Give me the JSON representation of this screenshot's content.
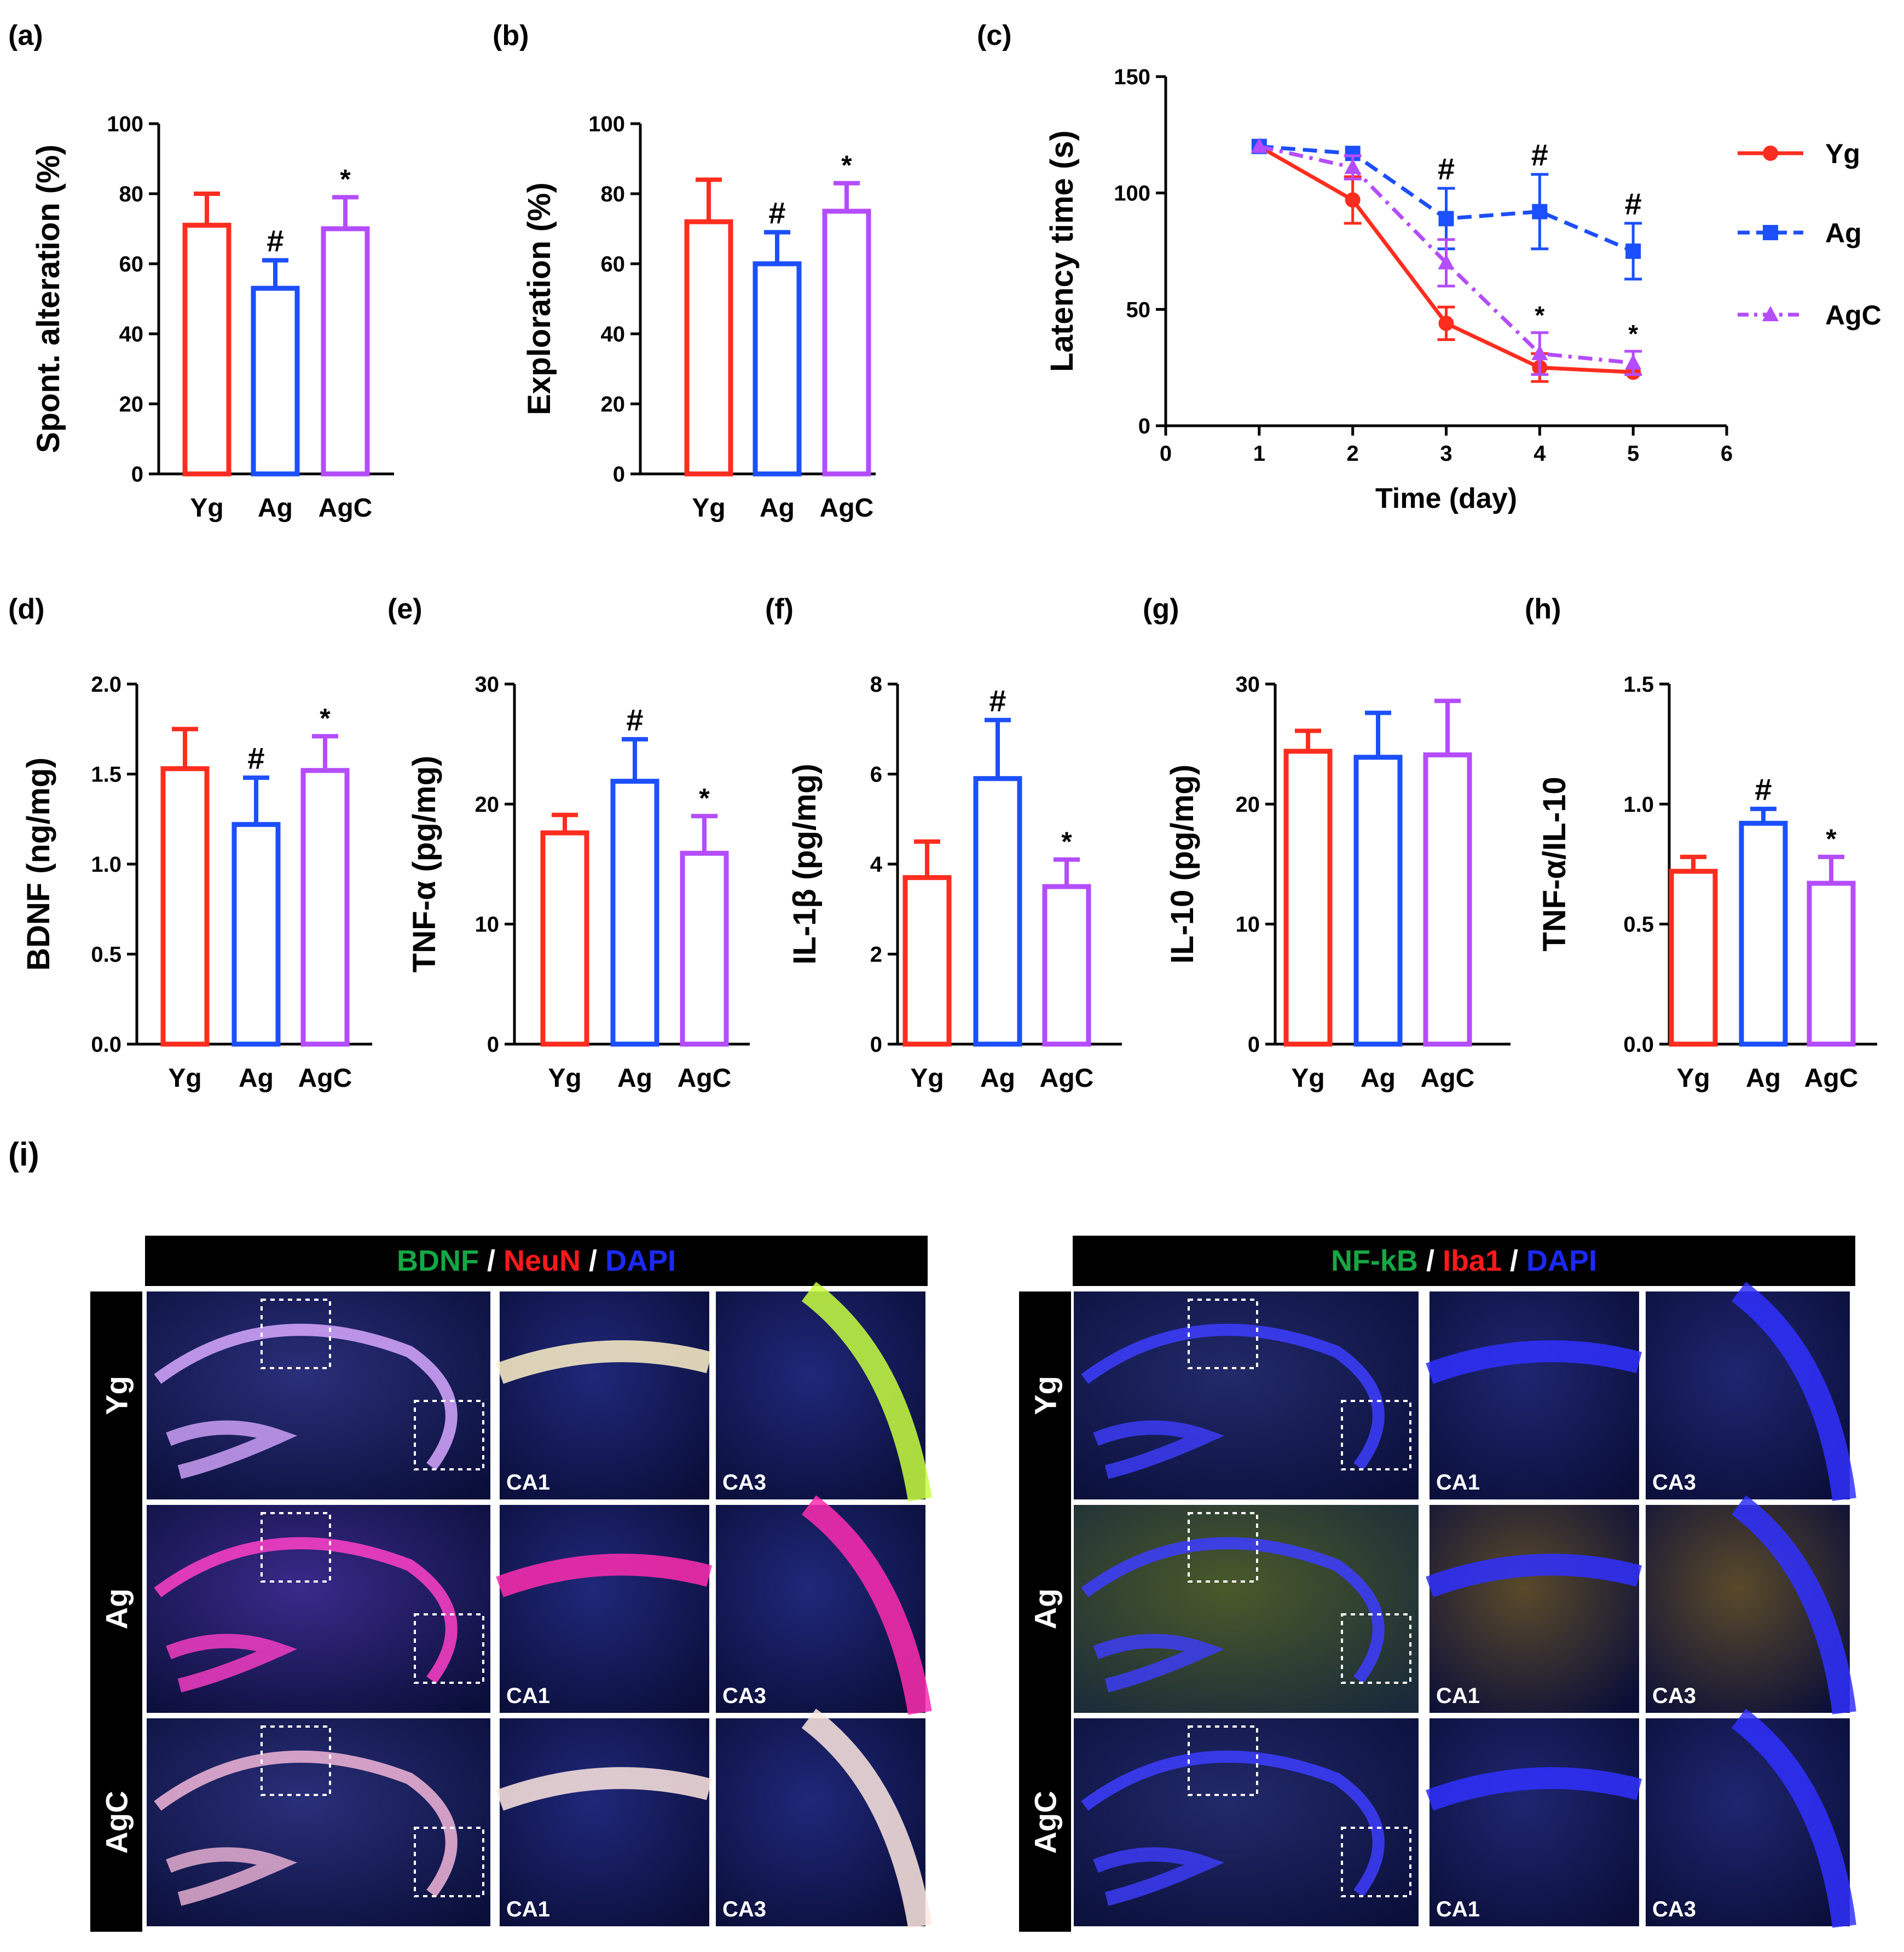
{
  "colors": {
    "yg": "#ff2d1f",
    "ag": "#1c4fff",
    "agc": "#b44cff",
    "axis": "#000000",
    "stain_green": "#14a844",
    "stain_red": "#ff1a1a",
    "stain_blue": "#1a2aff",
    "header_bg": "#000000",
    "header_sep": "#ffffff"
  },
  "chart_data": [
    {
      "id": "a",
      "panel_label": "(a)",
      "type": "bar",
      "ylabel": "Spont. alteration (%)",
      "ylim": [
        0,
        100
      ],
      "yticks": [
        "0",
        "20",
        "40",
        "60",
        "80",
        "100"
      ],
      "categories": [
        "Yg",
        "Ag",
        "AgC"
      ],
      "values": [
        71,
        53,
        70
      ],
      "errors": [
        9,
        8,
        9
      ],
      "annotations": [
        "",
        "#",
        "*"
      ]
    },
    {
      "id": "b",
      "panel_label": "(b)",
      "type": "bar",
      "ylabel": "Exploration (%)",
      "ylim": [
        0,
        100
      ],
      "yticks": [
        "0",
        "20",
        "40",
        "60",
        "80",
        "100"
      ],
      "categories": [
        "Yg",
        "Ag",
        "AgC"
      ],
      "values": [
        72,
        60,
        75
      ],
      "errors": [
        12,
        9,
        8
      ],
      "annotations": [
        "",
        "#",
        "*"
      ]
    },
    {
      "id": "c",
      "panel_label": "(c)",
      "type": "line",
      "ylabel": "Latency time (s)",
      "xlabel": "Time (day)",
      "xlim": [
        0,
        6
      ],
      "xticks": [
        "0",
        "1",
        "2",
        "3",
        "4",
        "5",
        "6"
      ],
      "ylim": [
        0,
        150
      ],
      "yticks": [
        "0",
        "50",
        "100",
        "150"
      ],
      "x": [
        1,
        2,
        3,
        4,
        5
      ],
      "series": [
        {
          "name": "Yg",
          "values": [
            120,
            97,
            44,
            25,
            23
          ],
          "errors": [
            2,
            10,
            7,
            6,
            2
          ],
          "annotations": [
            "",
            "",
            "",
            "",
            ""
          ]
        },
        {
          "name": "Ag",
          "values": [
            120,
            117,
            89,
            92,
            75
          ],
          "errors": [
            2,
            2,
            13,
            16,
            12
          ],
          "annotations": [
            "",
            "",
            "#",
            "#",
            "#"
          ]
        },
        {
          "name": "AgC",
          "values": [
            120,
            111,
            70,
            31,
            27
          ],
          "errors": [
            2,
            5,
            10,
            9,
            5
          ],
          "annotations": [
            "",
            "",
            "",
            "*",
            "*"
          ]
        }
      ],
      "legend": [
        "Yg",
        "Ag",
        "AgC"
      ]
    },
    {
      "id": "d",
      "panel_label": "(d)",
      "type": "bar",
      "ylabel": "BDNF (ng/mg)",
      "ylim": [
        0,
        2.0
      ],
      "yticks": [
        "0.0",
        "0.5",
        "1.0",
        "1.5",
        "2.0"
      ],
      "categories": [
        "Yg",
        "Ag",
        "AgC"
      ],
      "values": [
        1.53,
        1.22,
        1.52
      ],
      "errors": [
        0.22,
        0.26,
        0.19
      ],
      "annotations": [
        "",
        "#",
        "*"
      ]
    },
    {
      "id": "e",
      "panel_label": "(e)",
      "type": "bar",
      "ylabel": "TNF-α (pg/mg)",
      "ylim": [
        0,
        30
      ],
      "yticks": [
        "0",
        "10",
        "20",
        "30"
      ],
      "categories": [
        "Yg",
        "Ag",
        "AgC"
      ],
      "values": [
        17.6,
        21.9,
        15.9
      ],
      "errors": [
        1.5,
        3.5,
        3.1
      ],
      "annotations": [
        "",
        "#",
        "*"
      ]
    },
    {
      "id": "f",
      "panel_label": "(f)",
      "type": "bar",
      "ylabel": "IL-1β (pg/mg)",
      "ylim": [
        0,
        8
      ],
      "yticks": [
        "0",
        "2",
        "4",
        "6",
        "8"
      ],
      "categories": [
        "Yg",
        "Ag",
        "AgC"
      ],
      "values": [
        3.7,
        5.9,
        3.5
      ],
      "errors": [
        0.8,
        1.3,
        0.6
      ],
      "annotations": [
        "",
        "#",
        "*"
      ]
    },
    {
      "id": "g",
      "panel_label": "(g)",
      "type": "bar",
      "ylabel": "IL-10 (pg/mg)",
      "ylim": [
        0,
        30
      ],
      "yticks": [
        "0",
        "10",
        "20",
        "30"
      ],
      "categories": [
        "Yg",
        "Ag",
        "AgC"
      ],
      "values": [
        24.4,
        23.9,
        24.1
      ],
      "errors": [
        1.7,
        3.7,
        4.5
      ],
      "annotations": [
        "",
        "",
        ""
      ]
    },
    {
      "id": "h",
      "panel_label": "(h)",
      "type": "bar",
      "ylabel": "TNF-α/IL-10",
      "ylim": [
        0,
        1.5
      ],
      "yticks": [
        "0.0",
        "0.5",
        "1.0",
        "1.5"
      ],
      "categories": [
        "Yg",
        "Ag",
        "AgC"
      ],
      "values": [
        0.72,
        0.92,
        0.67
      ],
      "errors": [
        0.06,
        0.06,
        0.11
      ],
      "annotations": [
        "",
        "#",
        "*"
      ]
    }
  ],
  "micrographs": {
    "panel_label": "(i)",
    "left_header": [
      {
        "text": "BDNF",
        "color": "green"
      },
      {
        "text": " / ",
        "color": "white"
      },
      {
        "text": "NeuN",
        "color": "red"
      },
      {
        "text": " / ",
        "color": "white"
      },
      {
        "text": "DAPI",
        "color": "blue"
      }
    ],
    "right_header": [
      {
        "text": "NF-kB",
        "color": "green"
      },
      {
        "text": " / ",
        "color": "white"
      },
      {
        "text": "Iba1",
        "color": "red"
      },
      {
        "text": " / ",
        "color": "white"
      },
      {
        "text": "DAPI",
        "color": "blue"
      }
    ],
    "rows": [
      "Yg",
      "Ag",
      "AgC"
    ],
    "zoom_labels": [
      "CA1",
      "CA3"
    ]
  }
}
